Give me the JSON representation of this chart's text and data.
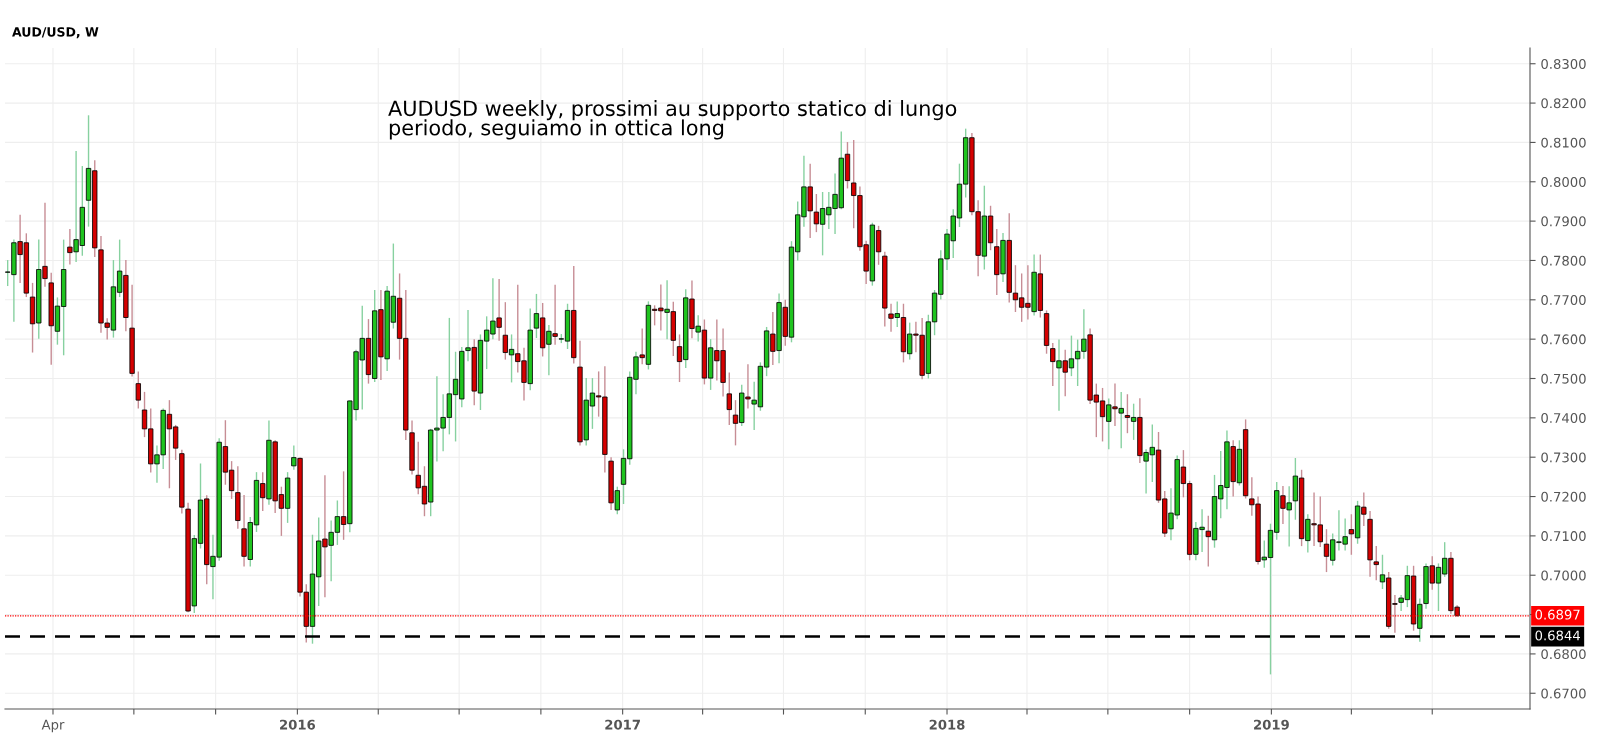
{
  "chart_data": {
    "type": "candlestick",
    "title": "AUD/USD, W",
    "annotations": [
      "AUDUSD weekly, prossimi au supporto statico di lungo\nperiodo, seguiamo in ottica long"
    ],
    "colors": [
      "#1fc41f",
      "#1fc41f",
      "#d50000",
      "#d50000",
      "#d50000",
      "#1fc41f",
      "#d50000",
      "#d50000",
      "#1fc41f",
      "#1fc41f",
      "#d50000",
      "#1fc41f",
      "#1fc41f",
      "#1fc41f",
      "#d50000",
      "#d50000",
      "#d50000",
      "#1fc41f",
      "#1fc41f",
      "#d50000",
      "#d50000",
      "#d50000",
      "#d50000",
      "#d50000",
      "#1fc41f",
      "#1fc41f",
      "#d50000",
      "#d50000",
      "#d50000",
      "#d50000",
      "#1fc41f",
      "#1fc41f",
      "#d50000",
      "#1fc41f",
      "#1fc41f",
      "#d50000",
      "#d50000",
      "#d50000",
      "#d50000",
      "#1fc41f",
      "#1fc41f",
      "#d50000",
      "#1fc41f",
      "#d50000",
      "#d50000",
      "#1fc41f",
      "#1fc41f",
      "#d50000",
      "#d50000",
      "#1fc41f",
      "#1fc41f",
      "#d50000",
      "#1fc41f",
      "#1fc41f",
      "#d50000",
      "#1fc41f",
      "#1fc41f",
      "#1fc41f",
      "#d50000",
      "#1fc41f",
      "#d50000",
      "#1fc41f",
      "#1fc41f",
      "#d50000",
      "#d50000",
      "#d50000",
      "#d50000",
      "#d50000",
      "#1fc41f",
      "#1fc41f",
      "#1fc41f",
      "#1fc41f",
      "#1fc41f",
      "#1fc41f",
      "#1fc41f",
      "#d50000",
      "#1fc41f",
      "#1fc41f",
      "#1fc41f",
      "#d50000",
      "#d50000",
      "#1fc41f",
      "#d50000",
      "#d50000",
      "#1fc41f",
      "#1fc41f",
      "#d50000",
      "#1fc41f",
      "#d50000",
      "#1fc41f",
      "#1fc41f",
      "#d50000",
      "#d50000",
      "#1fc41f",
      "#1fc41f",
      "#d50000",
      "#d50000",
      "#d50000",
      "#1fc41f",
      "#1fc41f",
      "#1fc41f",
      "#1fc41f",
      "#d50000",
      "#1fc41f",
      "#d50000",
      "#d50000",
      "#1fc41f",
      "#d50000",
      "#d50000",
      "#1fc41f",
      "#d50000",
      "#1fc41f",
      "#d50000",
      "#1fc41f",
      "#d50000",
      "#d50000",
      "#d50000",
      "#d50000",
      "#1fc41f",
      "#d50000",
      "#1fc41f",
      "#1fc41f",
      "#1fc41f",
      "#d50000",
      "#1fc41f",
      "#d50000",
      "#1fc41f",
      "#1fc41f",
      "#1fc41f",
      "#d50000",
      "#d50000",
      "#1fc41f",
      "#1fc41f",
      "#1fc41f",
      "#1fc41f",
      "#d50000",
      "#d50000",
      "#d50000",
      "#d50000",
      "#1fc41f",
      "#d50000",
      "#d50000",
      "#d50000",
      "#1fc41f",
      "#d50000",
      "#1fc41f",
      "#d50000",
      "#d50000",
      "#1fc41f",
      "#1fc41f",
      "#1fc41f",
      "#1fc41f",
      "#1fc41f",
      "#1fc41f",
      "#1fc41f",
      "#d50000",
      "#d50000",
      "#1fc41f",
      "#d50000",
      "#d50000",
      "#1fc41f",
      "#d50000",
      "#d50000",
      "#d50000",
      "#d50000",
      "#1fc41f",
      "#d50000",
      "#d50000",
      "#d50000",
      "#1fc41f",
      "#d50000",
      "#1fc41f",
      "#1fc41f",
      "#1fc41f",
      "#d50000",
      "#d50000",
      "#d50000",
      "#1fc41f",
      "#d50000",
      "#1fc41f",
      "#d50000",
      "#1fc41f",
      "#d50000",
      "#1fc41f",
      "#1fc41f",
      "#d50000",
      "#d50000",
      "#1fc41f",
      "#1fc41f",
      "#d50000",
      "#d50000",
      "#1fc41f",
      "#1fc41f",
      "#d50000",
      "#1fc41f",
      "#1fc41f",
      "#1fc41f",
      "#d50000",
      "#1fc41f",
      "#d50000",
      "#d50000",
      "#d50000",
      "#1fc41f",
      "#1fc41f",
      "#1fc41f",
      "#d50000",
      "#1fc41f",
      "#1fc41f",
      "#d50000",
      "#1fc41f",
      "#d50000",
      "#d50000",
      "#d50000",
      "#1fc41f",
      "#1fc41f",
      "#1fc41f",
      "#d50000",
      "#1fc41f",
      "#d50000",
      "#d50000",
      "#d50000",
      "#1fc41f",
      "#d50000",
      "#d50000",
      "#1fc41f",
      "#1fc41f",
      "#d50000",
      "#1fc41f",
      "#1fc41f",
      "#d50000",
      "#1fc41f",
      "#1fc41f",
      "#d50000",
      "#d50000"
    ],
    "x": [
      "2015-02-09",
      "2015-02-16",
      "2015-02-23",
      "2015-03-02",
      "2015-03-09",
      "2015-03-16",
      "2015-03-23",
      "2015-03-30",
      "2015-04-06",
      "2015-04-13",
      "2015-04-20",
      "2015-04-27",
      "2015-05-04",
      "2015-05-11",
      "2015-05-18",
      "2015-05-25",
      "2015-06-01",
      "2015-06-08",
      "2015-06-15",
      "2015-06-22",
      "2015-06-29",
      "2015-07-06",
      "2015-07-13",
      "2015-07-20",
      "2015-07-27",
      "2015-08-03",
      "2015-08-10",
      "2015-08-17",
      "2015-08-24",
      "2015-08-31",
      "2015-09-07",
      "2015-09-14",
      "2015-09-21",
      "2015-09-28",
      "2015-10-05",
      "2015-10-12",
      "2015-10-19",
      "2015-10-26",
      "2015-11-02",
      "2015-11-09",
      "2015-11-16",
      "2015-11-23",
      "2015-11-30",
      "2015-12-07",
      "2015-12-14",
      "2015-12-21",
      "2015-12-28",
      "2016-01-04",
      "2016-01-11",
      "2016-01-18",
      "2016-01-25",
      "2016-02-01",
      "2016-02-08",
      "2016-02-15",
      "2016-02-22",
      "2016-02-29",
      "2016-03-07",
      "2016-03-14",
      "2016-03-21",
      "2016-03-28",
      "2016-04-04",
      "2016-04-11",
      "2016-04-18",
      "2016-04-25",
      "2016-05-02",
      "2016-05-09",
      "2016-05-16",
      "2016-05-23",
      "2016-05-30",
      "2016-06-06",
      "2016-06-13",
      "2016-06-20",
      "2016-06-27",
      "2016-07-04",
      "2016-07-11",
      "2016-07-18",
      "2016-07-25",
      "2016-08-01",
      "2016-08-08",
      "2016-08-15",
      "2016-08-22",
      "2016-08-29",
      "2016-09-05",
      "2016-09-12",
      "2016-09-19",
      "2016-09-26",
      "2016-10-03",
      "2016-10-10",
      "2016-10-17",
      "2016-10-24",
      "2016-10-31",
      "2016-11-07",
      "2016-11-14",
      "2016-11-21",
      "2016-11-28",
      "2016-12-05",
      "2016-12-12",
      "2016-12-19",
      "2016-12-26",
      "2017-01-02",
      "2017-01-09",
      "2017-01-16",
      "2017-01-23",
      "2017-01-30",
      "2017-02-06",
      "2017-02-13",
      "2017-02-20",
      "2017-02-27",
      "2017-03-06",
      "2017-03-13",
      "2017-03-20",
      "2017-03-27",
      "2017-04-03",
      "2017-04-10",
      "2017-04-17",
      "2017-04-24",
      "2017-05-01",
      "2017-05-08",
      "2017-05-15",
      "2017-05-22",
      "2017-05-29",
      "2017-06-05",
      "2017-06-12",
      "2017-06-19",
      "2017-06-26",
      "2017-07-03",
      "2017-07-10",
      "2017-07-17",
      "2017-07-24",
      "2017-07-31",
      "2017-08-07",
      "2017-08-14",
      "2017-08-21",
      "2017-08-28",
      "2017-09-04",
      "2017-09-11",
      "2017-09-18",
      "2017-09-25",
      "2017-10-02",
      "2017-10-09",
      "2017-10-16",
      "2017-10-23",
      "2017-10-30",
      "2017-11-06",
      "2017-11-13",
      "2017-11-20",
      "2017-11-27",
      "2017-12-04",
      "2017-12-11",
      "2017-12-18",
      "2017-12-25",
      "2018-01-01",
      "2018-01-08",
      "2018-01-15",
      "2018-01-22",
      "2018-01-29",
      "2018-02-05",
      "2018-02-12",
      "2018-02-19",
      "2018-02-26",
      "2018-03-05",
      "2018-03-12",
      "2018-03-19",
      "2018-03-26",
      "2018-04-02",
      "2018-04-09",
      "2018-04-16",
      "2018-04-23",
      "2018-04-30",
      "2018-05-07",
      "2018-05-14",
      "2018-05-21",
      "2018-05-28",
      "2018-06-04",
      "2018-06-11",
      "2018-06-18",
      "2018-06-25",
      "2018-07-02",
      "2018-07-09",
      "2018-07-16",
      "2018-07-23",
      "2018-07-30",
      "2018-08-06",
      "2018-08-13",
      "2018-08-20",
      "2018-08-27",
      "2018-09-03",
      "2018-09-10",
      "2018-09-17",
      "2018-09-24",
      "2018-10-01",
      "2018-10-08",
      "2018-10-15",
      "2018-10-22",
      "2018-10-29",
      "2018-11-05",
      "2018-11-12",
      "2018-11-19",
      "2018-11-26",
      "2018-12-03",
      "2018-12-10",
      "2018-12-17",
      "2018-12-24",
      "2018-12-31",
      "2019-01-07",
      "2019-01-14",
      "2019-01-21",
      "2019-01-28",
      "2019-02-04",
      "2019-02-11",
      "2019-02-18",
      "2019-02-25",
      "2019-03-04",
      "2019-03-11",
      "2019-03-18",
      "2019-03-25",
      "2019-04-01",
      "2019-04-08",
      "2019-04-15",
      "2019-04-22",
      "2019-04-29",
      "2019-05-06",
      "2019-05-13",
      "2019-05-20",
      "2019-05-27",
      "2019-06-03",
      "2019-06-10",
      "2019-06-17",
      "2019-06-24",
      "2019-07-01",
      "2019-07-08",
      "2019-07-15",
      "2019-07-22",
      "2019-07-29"
    ],
    "ohlc": [
      [
        0.777,
        0.7801,
        0.7735,
        0.777
      ],
      [
        0.7764,
        0.7853,
        0.7644,
        0.7845
      ],
      [
        0.7848,
        0.7916,
        0.7743,
        0.7815
      ],
      [
        0.7845,
        0.7869,
        0.7707,
        0.7717
      ],
      [
        0.7707,
        0.7743,
        0.7566,
        0.7639
      ],
      [
        0.7641,
        0.7853,
        0.7601,
        0.7777
      ],
      [
        0.7785,
        0.7947,
        0.7733,
        0.7754
      ],
      [
        0.7743,
        0.7769,
        0.7535,
        0.7634
      ],
      [
        0.762,
        0.7706,
        0.7586,
        0.7684
      ],
      [
        0.7683,
        0.7853,
        0.7559,
        0.7777
      ],
      [
        0.7834,
        0.788,
        0.779,
        0.782
      ],
      [
        0.7822,
        0.8078,
        0.7796,
        0.7853
      ],
      [
        0.7838,
        0.804,
        0.7812,
        0.7935
      ],
      [
        0.7953,
        0.8169,
        0.7886,
        0.8034
      ],
      [
        0.8028,
        0.8055,
        0.7809,
        0.7832
      ],
      [
        0.7827,
        0.7862,
        0.7616,
        0.7641
      ],
      [
        0.7641,
        0.7653,
        0.7599,
        0.763
      ],
      [
        0.7623,
        0.7801,
        0.7604,
        0.7733
      ],
      [
        0.7719,
        0.7853,
        0.7707,
        0.7773
      ],
      [
        0.7762,
        0.7801,
        0.762,
        0.7655
      ],
      [
        0.7628,
        0.7738,
        0.7505,
        0.7513
      ],
      [
        0.7487,
        0.7518,
        0.7424,
        0.7445
      ],
      [
        0.742,
        0.7466,
        0.7351,
        0.7372
      ],
      [
        0.7372,
        0.7424,
        0.7261,
        0.7283
      ],
      [
        0.7283,
        0.733,
        0.7235,
        0.7306
      ],
      [
        0.7306,
        0.7424,
        0.727,
        0.7419
      ],
      [
        0.7409,
        0.7445,
        0.7221,
        0.7372
      ],
      [
        0.7377,
        0.7382,
        0.7293,
        0.7323
      ],
      [
        0.7309,
        0.7319,
        0.7157,
        0.7173
      ],
      [
        0.7168,
        0.7184,
        0.6906,
        0.6909
      ],
      [
        0.6922,
        0.7102,
        0.6904,
        0.7093
      ],
      [
        0.7081,
        0.7284,
        0.7068,
        0.7191
      ],
      [
        0.7194,
        0.7203,
        0.6977,
        0.7027
      ],
      [
        0.7022,
        0.7103,
        0.6939,
        0.7048
      ],
      [
        0.7046,
        0.7348,
        0.7037,
        0.7338
      ],
      [
        0.7327,
        0.7394,
        0.723,
        0.7262
      ],
      [
        0.7267,
        0.729,
        0.7194,
        0.7215
      ],
      [
        0.721,
        0.7277,
        0.7118,
        0.7139
      ],
      [
        0.7118,
        0.7204,
        0.7022,
        0.7048
      ],
      [
        0.704,
        0.7148,
        0.7022,
        0.7134
      ],
      [
        0.7128,
        0.7262,
        0.711,
        0.7241
      ],
      [
        0.7233,
        0.7262,
        0.7163,
        0.7197
      ],
      [
        0.7194,
        0.7393,
        0.7179,
        0.7343
      ],
      [
        0.7339,
        0.7343,
        0.7158,
        0.7189
      ],
      [
        0.7205,
        0.7225,
        0.71,
        0.717
      ],
      [
        0.717,
        0.7262,
        0.7133,
        0.7247
      ],
      [
        0.7278,
        0.733,
        0.7268,
        0.7299
      ],
      [
        0.7297,
        0.7299,
        0.6946,
        0.6957
      ],
      [
        0.6957,
        0.6977,
        0.6829,
        0.687
      ],
      [
        0.687,
        0.7103,
        0.6826,
        0.7003
      ],
      [
        0.6996,
        0.7147,
        0.6922,
        0.7087
      ],
      [
        0.7092,
        0.7254,
        0.6944,
        0.7072
      ],
      [
        0.7076,
        0.7139,
        0.6985,
        0.7109
      ],
      [
        0.7109,
        0.719,
        0.7077,
        0.7149
      ],
      [
        0.7149,
        0.7264,
        0.709,
        0.7129
      ],
      [
        0.7131,
        0.7444,
        0.7109,
        0.7443
      ],
      [
        0.7421,
        0.7573,
        0.7393,
        0.7568
      ],
      [
        0.7547,
        0.7685,
        0.7421,
        0.7602
      ],
      [
        0.7602,
        0.7651,
        0.7487,
        0.751
      ],
      [
        0.75,
        0.7725,
        0.7491,
        0.7672
      ],
      [
        0.7675,
        0.7725,
        0.7496,
        0.7555
      ],
      [
        0.755,
        0.7735,
        0.7519,
        0.7722
      ],
      [
        0.7643,
        0.7843,
        0.7627,
        0.7709
      ],
      [
        0.7704,
        0.7767,
        0.7548,
        0.7602
      ],
      [
        0.7602,
        0.7725,
        0.7344,
        0.7369
      ],
      [
        0.7362,
        0.7393,
        0.7256,
        0.7267
      ],
      [
        0.7254,
        0.7339,
        0.7206,
        0.7222
      ],
      [
        0.7226,
        0.7277,
        0.715,
        0.7181
      ],
      [
        0.7186,
        0.7372,
        0.715,
        0.7369
      ],
      [
        0.7369,
        0.7506,
        0.7289,
        0.7374
      ],
      [
        0.7374,
        0.746,
        0.7315,
        0.7401
      ],
      [
        0.7401,
        0.7654,
        0.7358,
        0.7461
      ],
      [
        0.7459,
        0.7568,
        0.734,
        0.7498
      ],
      [
        0.7448,
        0.758,
        0.7427,
        0.7569
      ],
      [
        0.7571,
        0.7674,
        0.7544,
        0.7578
      ],
      [
        0.7579,
        0.76,
        0.7432,
        0.7468
      ],
      [
        0.7463,
        0.7612,
        0.742,
        0.7597
      ],
      [
        0.7595,
        0.7658,
        0.7524,
        0.7623
      ],
      [
        0.7613,
        0.7755,
        0.76,
        0.7646
      ],
      [
        0.7654,
        0.7753,
        0.7596,
        0.763
      ],
      [
        0.761,
        0.7694,
        0.7548,
        0.7566
      ],
      [
        0.756,
        0.7612,
        0.749,
        0.7574
      ],
      [
        0.7563,
        0.7738,
        0.7515,
        0.7543
      ],
      [
        0.7545,
        0.7578,
        0.7444,
        0.749
      ],
      [
        0.7487,
        0.7678,
        0.747,
        0.7623
      ],
      [
        0.7628,
        0.7715,
        0.7603,
        0.7665
      ],
      [
        0.7654,
        0.7692,
        0.7556,
        0.7578
      ],
      [
        0.7587,
        0.7636,
        0.7508,
        0.762
      ],
      [
        0.7614,
        0.7738,
        0.7586,
        0.7607
      ],
      [
        0.76,
        0.7613,
        0.759,
        0.7601
      ],
      [
        0.7595,
        0.769,
        0.7575,
        0.7673
      ],
      [
        0.7673,
        0.7786,
        0.7538,
        0.7553
      ],
      [
        0.7529,
        0.7596,
        0.733,
        0.7339
      ],
      [
        0.7344,
        0.7501,
        0.733,
        0.7445
      ],
      [
        0.743,
        0.7501,
        0.7372,
        0.7463
      ],
      [
        0.7456,
        0.7518,
        0.7403,
        0.7453
      ],
      [
        0.7453,
        0.7531,
        0.7261,
        0.7307
      ],
      [
        0.729,
        0.73,
        0.7166,
        0.7184
      ],
      [
        0.7166,
        0.7225,
        0.7155,
        0.7215
      ],
      [
        0.7231,
        0.732,
        0.7181,
        0.7297
      ],
      [
        0.7296,
        0.7518,
        0.7281,
        0.7503
      ],
      [
        0.7498,
        0.7568,
        0.746,
        0.7555
      ],
      [
        0.756,
        0.7627,
        0.7536,
        0.7553
      ],
      [
        0.7536,
        0.7696,
        0.7523,
        0.7686
      ],
      [
        0.7676,
        0.7686,
        0.7635,
        0.7673
      ],
      [
        0.7679,
        0.7739,
        0.7622,
        0.7672
      ],
      [
        0.7668,
        0.775,
        0.76,
        0.7676
      ],
      [
        0.767,
        0.7695,
        0.7557,
        0.7597
      ],
      [
        0.7581,
        0.7612,
        0.7491,
        0.7543
      ],
      [
        0.7548,
        0.7727,
        0.7527,
        0.7705
      ],
      [
        0.7702,
        0.7749,
        0.7602,
        0.7627
      ],
      [
        0.7618,
        0.7661,
        0.7594,
        0.7633
      ],
      [
        0.7623,
        0.765,
        0.7485,
        0.7501
      ],
      [
        0.7501,
        0.76,
        0.7471,
        0.7578
      ],
      [
        0.7571,
        0.765,
        0.7495,
        0.7545
      ],
      [
        0.7571,
        0.7627,
        0.7454,
        0.749
      ],
      [
        0.7461,
        0.7515,
        0.7382,
        0.7421
      ],
      [
        0.7407,
        0.7445,
        0.733,
        0.7386
      ],
      [
        0.7388,
        0.7484,
        0.7379,
        0.7463
      ],
      [
        0.7453,
        0.7536,
        0.7424,
        0.7448
      ],
      [
        0.7435,
        0.7492,
        0.7369,
        0.7445
      ],
      [
        0.7428,
        0.7541,
        0.7418,
        0.7531
      ],
      [
        0.7529,
        0.7631,
        0.7506,
        0.7621
      ],
      [
        0.7613,
        0.7669,
        0.7534,
        0.7569
      ],
      [
        0.7571,
        0.7716,
        0.7539,
        0.7693
      ],
      [
        0.7681,
        0.77,
        0.7583,
        0.7607
      ],
      [
        0.7605,
        0.7849,
        0.7592,
        0.7834
      ],
      [
        0.7822,
        0.795,
        0.78,
        0.7916
      ],
      [
        0.7911,
        0.8066,
        0.7886,
        0.7987
      ],
      [
        0.7987,
        0.8046,
        0.7857,
        0.7926
      ],
      [
        0.7923,
        0.7969,
        0.7872,
        0.7893
      ],
      [
        0.7892,
        0.7974,
        0.7813,
        0.7932
      ],
      [
        0.7916,
        0.7974,
        0.788,
        0.7935
      ],
      [
        0.7932,
        0.8021,
        0.7867,
        0.7968
      ],
      [
        0.7934,
        0.8128,
        0.793,
        0.806
      ],
      [
        0.807,
        0.8101,
        0.7983,
        0.8003
      ],
      [
        0.7997,
        0.8106,
        0.7882,
        0.7965
      ],
      [
        0.7965,
        0.7988,
        0.7825,
        0.7835
      ],
      [
        0.784,
        0.785,
        0.774,
        0.7773
      ],
      [
        0.7748,
        0.7896,
        0.7736,
        0.789
      ],
      [
        0.7876,
        0.7888,
        0.7789,
        0.7822
      ],
      [
        0.7811,
        0.7822,
        0.7632,
        0.7679
      ],
      [
        0.7664,
        0.769,
        0.7619,
        0.7653
      ],
      [
        0.7655,
        0.7696,
        0.7631,
        0.7665
      ],
      [
        0.7655,
        0.769,
        0.7541,
        0.7568
      ],
      [
        0.7563,
        0.7642,
        0.7548,
        0.7613
      ],
      [
        0.7613,
        0.7644,
        0.7567,
        0.761
      ],
      [
        0.761,
        0.7654,
        0.7498,
        0.7508
      ],
      [
        0.7513,
        0.7662,
        0.75,
        0.7644
      ],
      [
        0.7644,
        0.7725,
        0.761,
        0.7717
      ],
      [
        0.7714,
        0.7826,
        0.7701,
        0.7804
      ],
      [
        0.7804,
        0.788,
        0.7776,
        0.7867
      ],
      [
        0.785,
        0.793,
        0.7806,
        0.7913
      ],
      [
        0.7908,
        0.8046,
        0.7885,
        0.7994
      ],
      [
        0.7994,
        0.8135,
        0.796,
        0.8112
      ],
      [
        0.8112,
        0.8124,
        0.7915,
        0.7924
      ],
      [
        0.7924,
        0.7953,
        0.776,
        0.7813
      ],
      [
        0.7811,
        0.799,
        0.7777,
        0.7913
      ],
      [
        0.7913,
        0.7939,
        0.7826,
        0.7845
      ],
      [
        0.7835,
        0.788,
        0.7712,
        0.7764
      ],
      [
        0.7766,
        0.787,
        0.7745,
        0.7851
      ],
      [
        0.7851,
        0.792,
        0.7693,
        0.7719
      ],
      [
        0.7717,
        0.7788,
        0.7669,
        0.77
      ],
      [
        0.7705,
        0.7767,
        0.7644,
        0.7681
      ],
      [
        0.7691,
        0.7788,
        0.765,
        0.7681
      ],
      [
        0.767,
        0.7815,
        0.766,
        0.777
      ],
      [
        0.7766,
        0.7815,
        0.7655,
        0.7673
      ],
      [
        0.7665,
        0.7673,
        0.7563,
        0.7584
      ],
      [
        0.7576,
        0.759,
        0.7481,
        0.7543
      ],
      [
        0.7527,
        0.7599,
        0.7418,
        0.7545
      ],
      [
        0.7545,
        0.7573,
        0.7455,
        0.7516
      ],
      [
        0.7527,
        0.7609,
        0.7506,
        0.755
      ],
      [
        0.755,
        0.7599,
        0.7481,
        0.7569
      ],
      [
        0.7569,
        0.7676,
        0.755,
        0.76
      ],
      [
        0.7611,
        0.7627,
        0.7435,
        0.7445
      ],
      [
        0.7458,
        0.7487,
        0.7351,
        0.744
      ],
      [
        0.7443,
        0.7476,
        0.734,
        0.7403
      ],
      [
        0.7391,
        0.7449,
        0.732,
        0.7433
      ],
      [
        0.7428,
        0.7487,
        0.7379,
        0.7423
      ],
      [
        0.7412,
        0.7466,
        0.7323,
        0.7424
      ],
      [
        0.7406,
        0.746,
        0.7361,
        0.7401
      ],
      [
        0.7391,
        0.7436,
        0.7344,
        0.7401
      ],
      [
        0.7401,
        0.745,
        0.7285,
        0.7304
      ],
      [
        0.729,
        0.732,
        0.7208,
        0.7312
      ],
      [
        0.7306,
        0.7383,
        0.7237,
        0.7325
      ],
      [
        0.7318,
        0.7364,
        0.7184,
        0.7191
      ],
      [
        0.7194,
        0.7214,
        0.7097,
        0.7107
      ],
      [
        0.7118,
        0.7221,
        0.7089,
        0.7158
      ],
      [
        0.7153,
        0.7304,
        0.7142,
        0.7294
      ],
      [
        0.7275,
        0.7318,
        0.7198,
        0.7233
      ],
      [
        0.7233,
        0.724,
        0.7038,
        0.7053
      ],
      [
        0.7053,
        0.7135,
        0.7038,
        0.7119
      ],
      [
        0.7116,
        0.7168,
        0.7059,
        0.7122
      ],
      [
        0.7112,
        0.7151,
        0.7022,
        0.7098
      ],
      [
        0.709,
        0.7255,
        0.707,
        0.72
      ],
      [
        0.7194,
        0.7316,
        0.7145,
        0.7228
      ],
      [
        0.7223,
        0.7368,
        0.7168,
        0.7339
      ],
      [
        0.7327,
        0.7343,
        0.72,
        0.7238
      ],
      [
        0.7235,
        0.7343,
        0.7228,
        0.732
      ],
      [
        0.737,
        0.7396,
        0.7195,
        0.7202
      ],
      [
        0.7194,
        0.7249,
        0.7151,
        0.7179
      ],
      [
        0.7181,
        0.72,
        0.7027,
        0.7035
      ],
      [
        0.7039,
        0.7088,
        0.7019,
        0.7046
      ],
      [
        0.7045,
        0.7131,
        0.6748,
        0.7114
      ],
      [
        0.7109,
        0.7237,
        0.709,
        0.7215
      ],
      [
        0.7202,
        0.7227,
        0.713,
        0.717
      ],
      [
        0.7166,
        0.7226,
        0.7073,
        0.7184
      ],
      [
        0.7189,
        0.7298,
        0.7141,
        0.7252
      ],
      [
        0.7247,
        0.7268,
        0.7074,
        0.7093
      ],
      [
        0.7088,
        0.7155,
        0.7058,
        0.7142
      ],
      [
        0.7131,
        0.721,
        0.7074,
        0.7128
      ],
      [
        0.7128,
        0.72,
        0.7072,
        0.7085
      ],
      [
        0.7079,
        0.7117,
        0.7008,
        0.7048
      ],
      [
        0.7038,
        0.7106,
        0.7025,
        0.709
      ],
      [
        0.7083,
        0.7165,
        0.7063,
        0.7085
      ],
      [
        0.7079,
        0.7144,
        0.7063,
        0.7098
      ],
      [
        0.7116,
        0.7155,
        0.7052,
        0.7105
      ],
      [
        0.7095,
        0.7189,
        0.708,
        0.7176
      ],
      [
        0.7173,
        0.721,
        0.7125,
        0.7155
      ],
      [
        0.7142,
        0.7163,
        0.6996,
        0.7039
      ],
      [
        0.7034,
        0.7074,
        0.6987,
        0.7027
      ],
      [
        0.6983,
        0.7052,
        0.6965,
        0.7001
      ],
      [
        0.6993,
        0.7008,
        0.6864,
        0.687
      ],
      [
        0.6928,
        0.695,
        0.6854,
        0.6926
      ],
      [
        0.6931,
        0.695,
        0.6909,
        0.6942
      ],
      [
        0.6938,
        0.7024,
        0.6919,
        0.6999
      ],
      [
        0.6998,
        0.7024,
        0.6859,
        0.6876
      ],
      [
        0.6865,
        0.6941,
        0.6831,
        0.6926
      ],
      [
        0.6928,
        0.703,
        0.6915,
        0.7022
      ],
      [
        0.7024,
        0.7048,
        0.6963,
        0.698
      ],
      [
        0.698,
        0.703,
        0.6909,
        0.702
      ],
      [
        0.7003,
        0.7084,
        0.6996,
        0.7043
      ],
      [
        0.7043,
        0.7059,
        0.6902,
        0.691
      ],
      [
        0.6919,
        0.6924,
        0.6895,
        0.6897
      ]
    ],
    "xlim": [
      "2015-02-06",
      "2019-10-19"
    ],
    "xticks": [
      {
        "value": "2015-04-01",
        "label": "Apr"
      },
      {
        "value": "2015-07-01",
        "label": null
      },
      {
        "value": "2015-10-01",
        "label": null
      },
      {
        "value": "2016-01-01",
        "label": "2016"
      },
      {
        "value": "2016-04-01",
        "label": null
      },
      {
        "value": "2016-07-01",
        "label": null
      },
      {
        "value": "2016-10-01",
        "label": null
      },
      {
        "value": "2017-01-01",
        "label": "2017"
      },
      {
        "value": "2017-04-01",
        "label": null
      },
      {
        "value": "2017-07-01",
        "label": null
      },
      {
        "value": "2017-10-01",
        "label": null
      },
      {
        "value": "2018-01-01",
        "label": "2018"
      },
      {
        "value": "2018-04-01",
        "label": null
      },
      {
        "value": "2018-07-01",
        "label": null
      },
      {
        "value": "2018-10-01",
        "label": null
      },
      {
        "value": "2019-01-01",
        "label": "2019"
      },
      {
        "value": "2019-04-01",
        "label": null
      },
      {
        "value": "2019-07-01",
        "label": null
      }
    ],
    "ylim": [
      0.666,
      0.834
    ],
    "yticks": [
      {
        "value": 0.67,
        "label": "0.6700"
      },
      {
        "value": 0.68,
        "label": "0.6800"
      },
      {
        "value": 0.69,
        "label": null
      },
      {
        "value": 0.7,
        "label": "0.7000"
      },
      {
        "value": 0.71,
        "label": "0.7100"
      },
      {
        "value": 0.72,
        "label": "0.7200"
      },
      {
        "value": 0.73,
        "label": "0.7300"
      },
      {
        "value": 0.74,
        "label": "0.7400"
      },
      {
        "value": 0.75,
        "label": "0.7500"
      },
      {
        "value": 0.76,
        "label": "0.7600"
      },
      {
        "value": 0.77,
        "label": "0.7700"
      },
      {
        "value": 0.78,
        "label": "0.7800"
      },
      {
        "value": 0.79,
        "label": "0.7900"
      },
      {
        "value": 0.8,
        "label": "0.8000"
      },
      {
        "value": 0.81,
        "label": "0.8100"
      },
      {
        "value": 0.82,
        "label": "0.8200"
      },
      {
        "value": 0.83,
        "label": "0.8300"
      }
    ],
    "ref_lines": [
      {
        "axis": "y",
        "value": 0.6897,
        "label": "0.6897",
        "color": "#ff0000",
        "line_style": "dotted"
      },
      {
        "axis": "y",
        "value": 0.6844,
        "label": "0.6844",
        "color": "#000000",
        "line_style": "dashed"
      }
    ],
    "grid": true
  }
}
